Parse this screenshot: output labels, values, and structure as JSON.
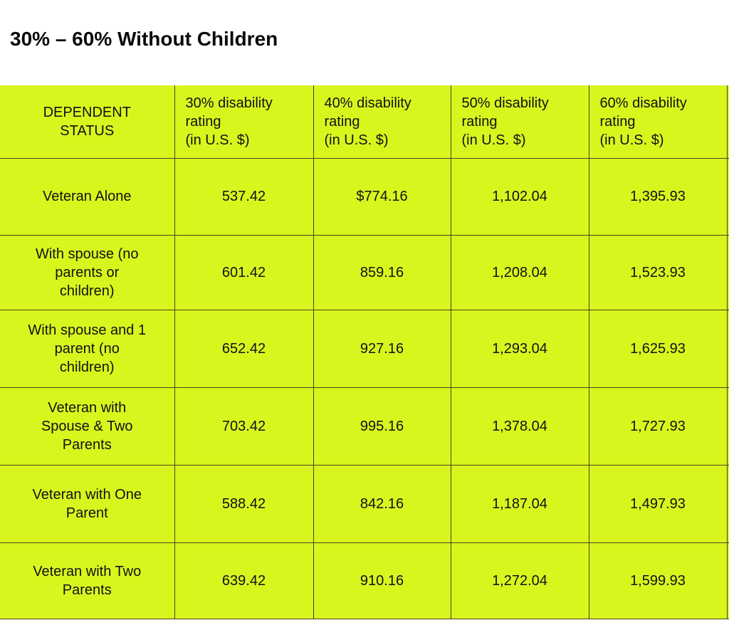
{
  "title": "30% – 60% Without Children",
  "table": {
    "corner_header": "DEPENDENT\nSTATUS",
    "column_headers": [
      "30% disability\nrating\n(in U.S. $)",
      "40% disability\nrating\n(in U.S. $)",
      "50% disability\nrating\n(in U.S. $)",
      "60% disability\nrating\n(in U.S. $)"
    ],
    "rows": [
      {
        "label": "Veteran Alone",
        "values": [
          "537.42",
          "$774.16",
          "1,102.04",
          "1,395.93"
        ]
      },
      {
        "label": "With spouse (no\nparents or\nchildren)",
        "values": [
          "601.42",
          "859.16",
          "1,208.04",
          "1,523.93"
        ]
      },
      {
        "label": "With spouse and 1\nparent (no\nchildren)",
        "values": [
          "652.42",
          "927.16",
          "1,293.04",
          "1,625.93"
        ]
      },
      {
        "label": "Veteran with\nSpouse & Two\nParents",
        "values": [
          "703.42",
          "995.16",
          "1,378.04",
          "1,727.93"
        ]
      },
      {
        "label": "Veteran with One\nParent",
        "values": [
          "588.42",
          "842.16",
          "1,187.04",
          "1,497.93"
        ]
      },
      {
        "label": "Veteran with Two\nParents",
        "values": [
          "639.42",
          "910.16",
          "1,272.04",
          "1,599.93"
        ]
      }
    ]
  },
  "colors": {
    "cell_background": "#d9f51e",
    "border": "#45461b",
    "text": "#121212",
    "page_background": "#ffffff"
  },
  "chart_data": {
    "type": "table",
    "title": "30% – 60% Without Children",
    "columns": [
      "DEPENDENT STATUS",
      "30% disability rating (in U.S. $)",
      "40% disability rating (in U.S. $)",
      "50% disability rating (in U.S. $)",
      "60% disability rating (in U.S. $)"
    ],
    "rows": [
      {
        "dependent_status": "Veteran Alone",
        "values_usd": [
          537.42,
          774.16,
          1102.04,
          1395.93
        ]
      },
      {
        "dependent_status": "With spouse (no parents or children)",
        "values_usd": [
          601.42,
          859.16,
          1208.04,
          1523.93
        ]
      },
      {
        "dependent_status": "With spouse and 1 parent (no children)",
        "values_usd": [
          652.42,
          927.16,
          1293.04,
          1625.93
        ]
      },
      {
        "dependent_status": "Veteran with Spouse & Two Parents",
        "values_usd": [
          703.42,
          995.16,
          1378.04,
          1727.93
        ]
      },
      {
        "dependent_status": "Veteran with One Parent",
        "values_usd": [
          588.42,
          842.16,
          1187.04,
          1497.93
        ]
      },
      {
        "dependent_status": "Veteran with Two Parents",
        "values_usd": [
          639.42,
          910.16,
          1272.04,
          1599.93
        ]
      }
    ]
  }
}
